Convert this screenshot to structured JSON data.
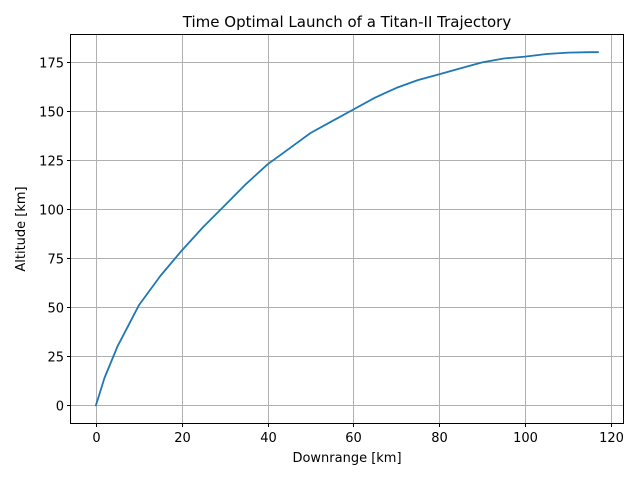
{
  "chart_data": {
    "type": "line",
    "title": "Time Optimal Launch of a Titan-II Trajectory",
    "xlabel": "Downrange [km]",
    "ylabel": "Altitude [km]",
    "xlim": [
      -5.8,
      122.8
    ],
    "ylim": [
      -9,
      189
    ],
    "xticks": [
      0,
      20,
      40,
      60,
      80,
      100,
      120
    ],
    "xtick_labels": [
      "0",
      "20",
      "40",
      "60",
      "80",
      "100",
      "120"
    ],
    "yticks": [
      0,
      25,
      50,
      75,
      100,
      125,
      150,
      175
    ],
    "ytick_labels": [
      "0",
      "25",
      "50",
      "75",
      "100",
      "125",
      "150",
      "175"
    ],
    "grid": true,
    "legend": "none",
    "series": [
      {
        "name": "trajectory",
        "color": "#1f77b4",
        "x": [
          0,
          2,
          5,
          10,
          15,
          20,
          25,
          30,
          35,
          40,
          45,
          50,
          55,
          60,
          65,
          70,
          75,
          80,
          85,
          90,
          95,
          100,
          105,
          110,
          115,
          117
        ],
        "y": [
          0,
          14,
          30,
          51,
          66,
          79,
          91,
          102,
          113,
          123,
          131,
          139,
          145,
          151,
          157,
          162,
          166,
          169,
          172,
          175,
          177,
          178,
          179.3,
          180,
          180.2,
          180.2
        ]
      }
    ]
  }
}
